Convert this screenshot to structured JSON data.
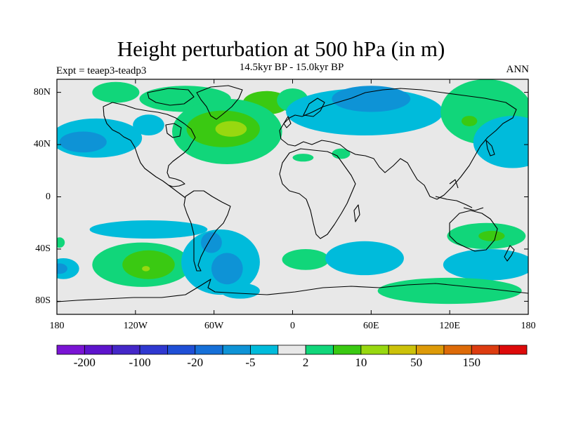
{
  "header": {
    "title": "Height perturbation at 500 hPa (in m)",
    "subtitle": "14.5kyr BP - 15.0kyr BP",
    "left_label": "Expt = teaep3-teadp3",
    "right_label": "ANN"
  },
  "map": {
    "projection": "equirectangular",
    "lon_range": [
      -180,
      180
    ],
    "lat_range": [
      -90,
      90
    ],
    "background_color": "#e8e8e8",
    "coastline_color": "#000000",
    "lat_ticks": [
      {
        "value": 80,
        "label": "80N"
      },
      {
        "value": 40,
        "label": "40N"
      },
      {
        "value": 0,
        "label": "0"
      },
      {
        "value": -40,
        "label": "40S"
      },
      {
        "value": -80,
        "label": "80S"
      }
    ],
    "lon_ticks": [
      {
        "value": -180,
        "label": "180"
      },
      {
        "value": -120,
        "label": "120W"
      },
      {
        "value": -60,
        "label": "60W"
      },
      {
        "value": 0,
        "label": "0"
      },
      {
        "value": 60,
        "label": "60E"
      },
      {
        "value": 120,
        "label": "120E"
      },
      {
        "value": 180,
        "label": "180"
      }
    ],
    "features": [
      {
        "lon": -135,
        "lat": 80,
        "rx": 18,
        "ry": 8,
        "level": "2 to 5"
      },
      {
        "lon": -82,
        "lat": 75,
        "rx": 35,
        "ry": 10,
        "level": "2 to 5"
      },
      {
        "lon": -20,
        "lat": 72,
        "rx": 18,
        "ry": 9,
        "level": "5 to 10"
      },
      {
        "lon": -50,
        "lat": 50,
        "rx": 42,
        "ry": 25,
        "level": "2 to 5"
      },
      {
        "lon": -53,
        "lat": 52,
        "rx": 28,
        "ry": 14,
        "level": "5 to 10"
      },
      {
        "lon": -47,
        "lat": 52,
        "rx": 12,
        "ry": 6,
        "level": "10 to 20"
      },
      {
        "lon": 0,
        "lat": 74,
        "rx": 12,
        "ry": 9,
        "level": "2 to 5"
      },
      {
        "lon": 55,
        "lat": 65,
        "rx": 60,
        "ry": 18,
        "level": "-5 to -2"
      },
      {
        "lon": 60,
        "lat": 75,
        "rx": 30,
        "ry": 10,
        "level": "-20 to -5"
      },
      {
        "lon": 148,
        "lat": 65,
        "rx": 35,
        "ry": 25,
        "level": "2 to 5"
      },
      {
        "lon": 135,
        "lat": 58,
        "rx": 6,
        "ry": 4,
        "level": "5 to 10"
      },
      {
        "lon": 168,
        "lat": 42,
        "rx": 30,
        "ry": 20,
        "level": "-5 to -2"
      },
      {
        "lon": -150,
        "lat": 45,
        "rx": 35,
        "ry": 15,
        "level": "-5 to -2"
      },
      {
        "lon": -160,
        "lat": 42,
        "rx": 18,
        "ry": 8,
        "level": "-20 to -5"
      },
      {
        "lon": -110,
        "lat": 55,
        "rx": 12,
        "ry": 8,
        "level": "-5 to -2"
      },
      {
        "lon": 8,
        "lat": 30,
        "rx": 8,
        "ry": 3,
        "level": "2 to 5"
      },
      {
        "lon": 37,
        "lat": 33,
        "rx": 7,
        "ry": 4,
        "level": "2 to 5"
      },
      {
        "lon": -110,
        "lat": -25,
        "rx": 45,
        "ry": 7,
        "level": "-5 to -2"
      },
      {
        "lon": -115,
        "lat": -52,
        "rx": 38,
        "ry": 17,
        "level": "2 to 5"
      },
      {
        "lon": -110,
        "lat": -52,
        "rx": 20,
        "ry": 11,
        "level": "5 to 10"
      },
      {
        "lon": -112,
        "lat": -55,
        "rx": 3,
        "ry": 2,
        "level": "10 to 20"
      },
      {
        "lon": -175,
        "lat": -55,
        "rx": 12,
        "ry": 8,
        "level": "-5 to -2"
      },
      {
        "lon": -178,
        "lat": -55,
        "rx": 6,
        "ry": 4,
        "level": "-20 to -5"
      },
      {
        "lon": -178,
        "lat": -35,
        "rx": 4,
        "ry": 4,
        "level": "2 to 5"
      },
      {
        "lon": -55,
        "lat": -50,
        "rx": 30,
        "ry": 25,
        "level": "-5 to -2"
      },
      {
        "lon": -50,
        "lat": -55,
        "rx": 12,
        "ry": 12,
        "level": "-20 to -5"
      },
      {
        "lon": -62,
        "lat": -35,
        "rx": 8,
        "ry": 8,
        "level": "-20 to -5"
      },
      {
        "lon": 10,
        "lat": -48,
        "rx": 18,
        "ry": 8,
        "level": "2 to 5"
      },
      {
        "lon": 55,
        "lat": -47,
        "rx": 30,
        "ry": 13,
        "level": "-5 to -2"
      },
      {
        "lon": 150,
        "lat": -52,
        "rx": 35,
        "ry": 12,
        "level": "-5 to -2"
      },
      {
        "lon": 148,
        "lat": -30,
        "rx": 30,
        "ry": 10,
        "level": "2 to 5"
      },
      {
        "lon": 152,
        "lat": -30,
        "rx": 10,
        "ry": 4,
        "level": "5 to 10"
      },
      {
        "lon": 120,
        "lat": -72,
        "rx": 55,
        "ry": 10,
        "level": "2 to 5"
      },
      {
        "lon": -40,
        "lat": -72,
        "rx": 15,
        "ry": 6,
        "level": "-5 to -2"
      }
    ]
  },
  "colorbar": {
    "colors": [
      "#7a14d4",
      "#5d14cc",
      "#4427c8",
      "#2f38d0",
      "#1f4fd6",
      "#1670d8",
      "#0e93d6",
      "#00bbdb",
      "#e8e8e8",
      "#11d67a",
      "#3ac912",
      "#98d810",
      "#ccc20a",
      "#dd9a08",
      "#dd6a08",
      "#dd3c10",
      "#dd0a0a"
    ],
    "labels": [
      {
        "text": "-200",
        "boundary": 1
      },
      {
        "text": "-100",
        "boundary": 3
      },
      {
        "text": "-20",
        "boundary": 5
      },
      {
        "text": "-5",
        "boundary": 7
      },
      {
        "text": "2",
        "boundary": 9
      },
      {
        "text": "10",
        "boundary": 11
      },
      {
        "text": "50",
        "boundary": 13
      },
      {
        "text": "150",
        "boundary": 15
      }
    ]
  }
}
